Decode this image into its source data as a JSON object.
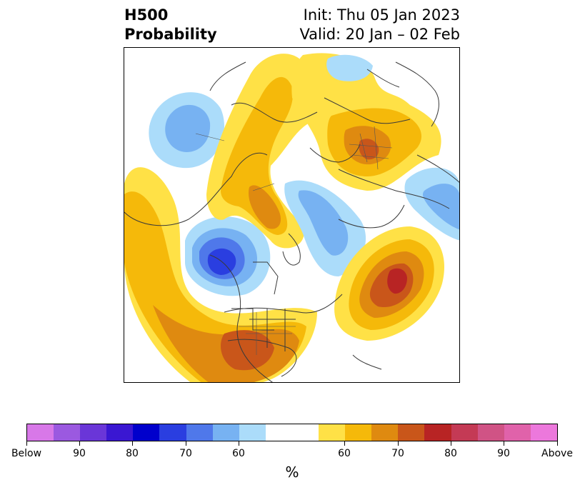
{
  "title": {
    "left_line1": "H500",
    "left_line2": "Probability",
    "right_line1": "Init: Thu 05 Jan 2023",
    "right_line2": "Valid: 20 Jan – 02 Feb"
  },
  "colorbar": {
    "unit": "%",
    "colors": [
      "#d878e8",
      "#9b59e0",
      "#6a36d8",
      "#3a17d2",
      "#0000cc",
      "#2a3ee0",
      "#4f78ea",
      "#77b2f2",
      "#abdcfa",
      "#ffffff",
      "#ffe146",
      "#f5b90a",
      "#df8a10",
      "#c9561a",
      "#b82424",
      "#c43a55",
      "#d05385",
      "#e062aa",
      "#ec78dc"
    ],
    "labels": [
      "Below",
      "90",
      "80",
      "70",
      "60",
      "60",
      "70",
      "80",
      "90",
      "Above"
    ]
  },
  "map": {
    "legend_colors": {
      "below_60": "#abdcfa",
      "below_70": "#77b2f2",
      "below_80": "#4f78ea",
      "below_90": "#2a3ee0",
      "above_60": "#ffe146",
      "above_70": "#f5b90a",
      "above_80": "#df8a10",
      "above_90": "#c9561a",
      "above_max": "#b82424"
    }
  }
}
